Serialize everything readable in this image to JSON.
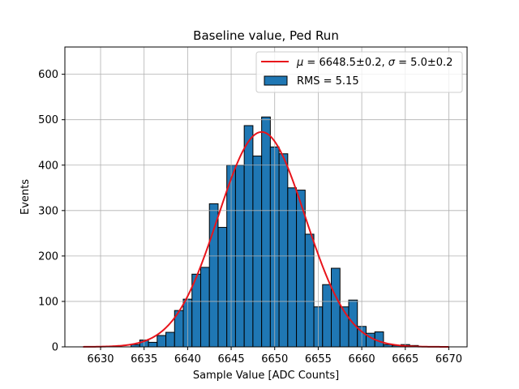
{
  "chart_data": {
    "type": "bar",
    "title": "Baseline value, Ped Run",
    "xlabel": "Sample Value [ADC Counts]",
    "ylabel": "Events",
    "xlim": [
      6625.9,
      6672.1
    ],
    "ylim": [
      0,
      660
    ],
    "xticks": [
      6630,
      6635,
      6640,
      6645,
      6650,
      6655,
      6660,
      6665,
      6670
    ],
    "yticks": [
      0,
      100,
      200,
      300,
      400,
      500,
      600
    ],
    "grid": true,
    "legend_position": "top-right",
    "colors": {
      "bars": "#1f77b4",
      "bar_edge": "#000000",
      "fit": "#e8141b",
      "grid": "#b0b0b0"
    },
    "histogram": {
      "name": "RMS = 5.15",
      "bin_width": 1,
      "bins": [
        {
          "x": 6634,
          "count": 5
        },
        {
          "x": 6635,
          "count": 15
        },
        {
          "x": 6636,
          "count": 10
        },
        {
          "x": 6637,
          "count": 25
        },
        {
          "x": 6638,
          "count": 32
        },
        {
          "x": 6639,
          "count": 80
        },
        {
          "x": 6640,
          "count": 105
        },
        {
          "x": 6641,
          "count": 160
        },
        {
          "x": 6642,
          "count": 175
        },
        {
          "x": 6643,
          "count": 315
        },
        {
          "x": 6644,
          "count": 263
        },
        {
          "x": 6645,
          "count": 400
        },
        {
          "x": 6646,
          "count": 400
        },
        {
          "x": 6647,
          "count": 487
        },
        {
          "x": 6648,
          "count": 420
        },
        {
          "x": 6649,
          "count": 506
        },
        {
          "x": 6650,
          "count": 440
        },
        {
          "x": 6651,
          "count": 425
        },
        {
          "x": 6652,
          "count": 350
        },
        {
          "x": 6653,
          "count": 345
        },
        {
          "x": 6654,
          "count": 248
        },
        {
          "x": 6655,
          "count": 88
        },
        {
          "x": 6656,
          "count": 137
        },
        {
          "x": 6657,
          "count": 173
        },
        {
          "x": 6658,
          "count": 88
        },
        {
          "x": 6659,
          "count": 103
        },
        {
          "x": 6660,
          "count": 45
        },
        {
          "x": 6661,
          "count": 30
        },
        {
          "x": 6662,
          "count": 33
        },
        {
          "x": 6663,
          "count": 5
        },
        {
          "x": 6664,
          "count": 3
        },
        {
          "x": 6665,
          "count": 5
        },
        {
          "x": 6666,
          "count": 3
        }
      ]
    },
    "fit": {
      "type": "gaussian",
      "mu": 6648.5,
      "sigma": 5.0,
      "amplitude": 473,
      "x_range": [
        6628,
        6670
      ],
      "mu_label": "6648.5±0.2",
      "sigma_label": "5.0±0.2"
    },
    "legend": {
      "fit_prefix": "μ = ",
      "fit_mu": "6648.5±0.2",
      "fit_sep": ", ",
      "fit_sigma_prefix": "σ = ",
      "fit_sigma": "5.0±0.2",
      "hist_label": "RMS = 5.15"
    }
  }
}
